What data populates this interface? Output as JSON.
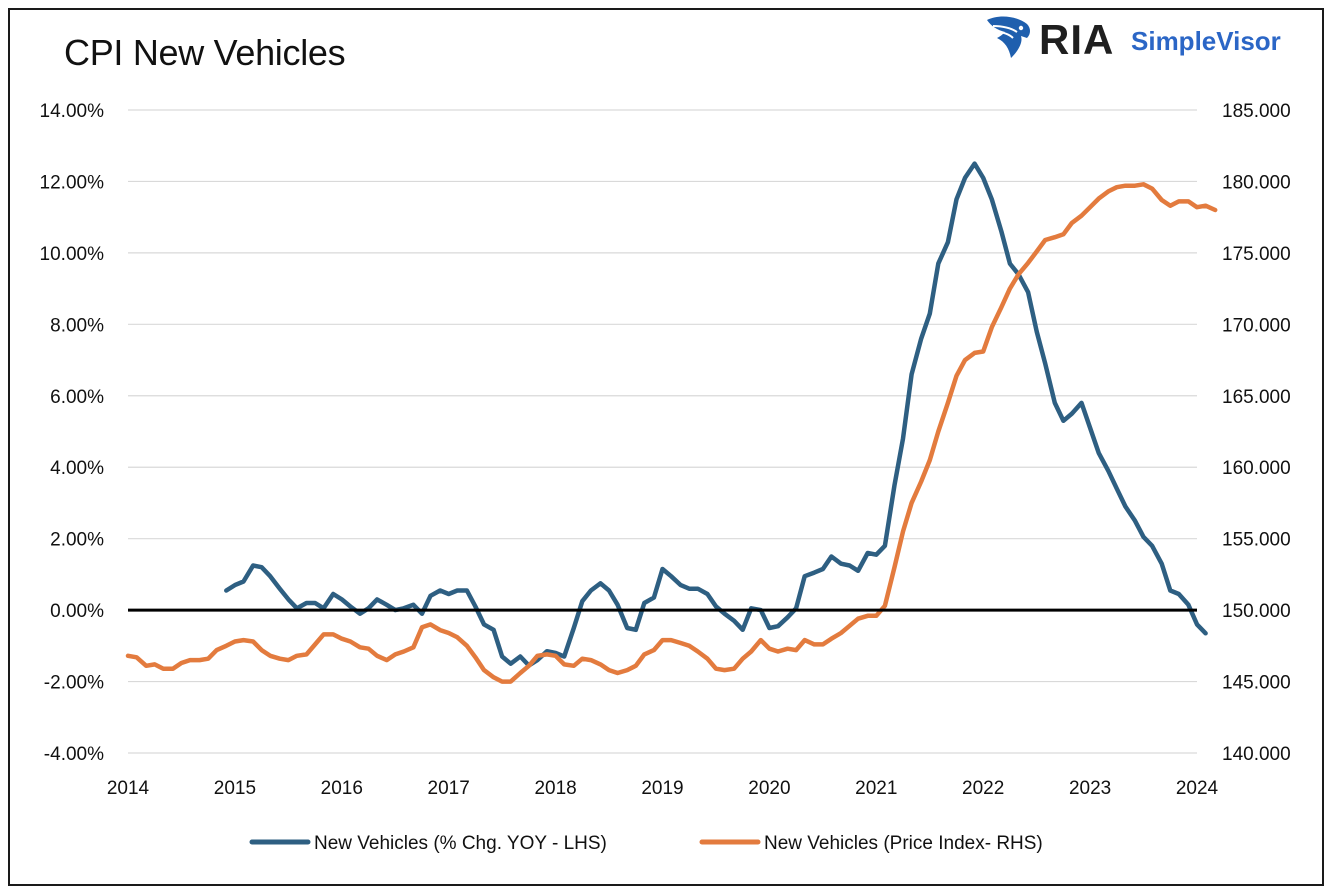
{
  "chart_data": {
    "type": "line",
    "title": "CPI New Vehicles",
    "logo": {
      "brand": "RIA",
      "product": "SimpleVisor",
      "icon": "eagle-head-icon"
    },
    "x_ticks": [
      "2014",
      "2015",
      "2016",
      "2017",
      "2018",
      "2019",
      "2020",
      "2021",
      "2022",
      "2023",
      "2024"
    ],
    "xlim": [
      2014,
      2024
    ],
    "y_left": {
      "ylim": [
        -4,
        14
      ],
      "ticks": [
        14,
        12,
        10,
        8,
        6,
        4,
        2,
        0,
        -2,
        -4
      ],
      "tick_labels": [
        "14.00%",
        "12.00%",
        "10.00%",
        "8.00%",
        "6.00%",
        "4.00%",
        "2.00%",
        "0.00%",
        "-2.00%",
        "-4.00%"
      ]
    },
    "y_right": {
      "ylim": [
        140,
        185
      ],
      "ticks": [
        185,
        180,
        175,
        170,
        165,
        160,
        155,
        150,
        145,
        140
      ],
      "tick_labels": [
        "185.000",
        "180.000",
        "175.000",
        "170.000",
        "165.000",
        "160.000",
        "155.000",
        "150.000",
        "145.000",
        "140.000"
      ]
    },
    "grid": true,
    "zero_line": true,
    "legend_position": "bottom",
    "series": [
      {
        "name": "New Vehicles (% Chg. YOY - LHS)",
        "axis": "left",
        "color": "#2e5f82",
        "points": [
          [
            2014.92,
            0.55
          ],
          [
            2015.0,
            0.7
          ],
          [
            2015.08,
            0.8
          ],
          [
            2015.17,
            1.25
          ],
          [
            2015.25,
            1.2
          ],
          [
            2015.33,
            0.95
          ],
          [
            2015.42,
            0.6
          ],
          [
            2015.5,
            0.3
          ],
          [
            2015.58,
            0.05
          ],
          [
            2015.67,
            0.2
          ],
          [
            2015.75,
            0.2
          ],
          [
            2015.83,
            0.05
          ],
          [
            2015.92,
            0.45
          ],
          [
            2016.0,
            0.3
          ],
          [
            2016.08,
            0.1
          ],
          [
            2016.17,
            -0.1
          ],
          [
            2016.25,
            0.05
          ],
          [
            2016.33,
            0.3
          ],
          [
            2016.42,
            0.15
          ],
          [
            2016.5,
            0.0
          ],
          [
            2016.58,
            0.05
          ],
          [
            2016.67,
            0.15
          ],
          [
            2016.75,
            -0.1
          ],
          [
            2016.83,
            0.4
          ],
          [
            2016.92,
            0.55
          ],
          [
            2017.0,
            0.45
          ],
          [
            2017.08,
            0.55
          ],
          [
            2017.17,
            0.55
          ],
          [
            2017.25,
            0.1
          ],
          [
            2017.33,
            -0.4
          ],
          [
            2017.42,
            -0.55
          ],
          [
            2017.5,
            -1.3
          ],
          [
            2017.58,
            -1.5
          ],
          [
            2017.67,
            -1.3
          ],
          [
            2017.75,
            -1.55
          ],
          [
            2017.83,
            -1.4
          ],
          [
            2017.92,
            -1.15
          ],
          [
            2018.0,
            -1.2
          ],
          [
            2018.08,
            -1.3
          ],
          [
            2018.17,
            -0.5
          ],
          [
            2018.25,
            0.25
          ],
          [
            2018.33,
            0.55
          ],
          [
            2018.42,
            0.75
          ],
          [
            2018.5,
            0.55
          ],
          [
            2018.58,
            0.15
          ],
          [
            2018.67,
            -0.5
          ],
          [
            2018.75,
            -0.55
          ],
          [
            2018.83,
            0.2
          ],
          [
            2018.92,
            0.35
          ],
          [
            2019.0,
            1.15
          ],
          [
            2019.08,
            0.95
          ],
          [
            2019.17,
            0.7
          ],
          [
            2019.25,
            0.6
          ],
          [
            2019.33,
            0.6
          ],
          [
            2019.42,
            0.45
          ],
          [
            2019.5,
            0.1
          ],
          [
            2019.58,
            -0.1
          ],
          [
            2019.67,
            -0.3
          ],
          [
            2019.75,
            -0.55
          ],
          [
            2019.83,
            0.05
          ],
          [
            2019.92,
            0.0
          ],
          [
            2020.0,
            -0.5
          ],
          [
            2020.08,
            -0.45
          ],
          [
            2020.17,
            -0.2
          ],
          [
            2020.25,
            0.05
          ],
          [
            2020.33,
            0.95
          ],
          [
            2020.42,
            1.05
          ],
          [
            2020.5,
            1.15
          ],
          [
            2020.58,
            1.5
          ],
          [
            2020.67,
            1.3
          ],
          [
            2020.75,
            1.25
          ],
          [
            2020.83,
            1.1
          ],
          [
            2020.92,
            1.6
          ],
          [
            2021.0,
            1.55
          ],
          [
            2021.08,
            1.8
          ],
          [
            2021.17,
            3.5
          ],
          [
            2021.25,
            4.8
          ],
          [
            2021.33,
            6.6
          ],
          [
            2021.42,
            7.6
          ],
          [
            2021.5,
            8.3
          ],
          [
            2021.58,
            9.7
          ],
          [
            2021.67,
            10.3
          ],
          [
            2021.75,
            11.5
          ],
          [
            2021.83,
            12.1
          ],
          [
            2021.92,
            12.5
          ],
          [
            2022.0,
            12.1
          ],
          [
            2022.08,
            11.5
          ],
          [
            2022.17,
            10.6
          ],
          [
            2022.25,
            9.7
          ],
          [
            2022.33,
            9.4
          ],
          [
            2022.42,
            8.9
          ],
          [
            2022.5,
            7.8
          ],
          [
            2022.58,
            6.9
          ],
          [
            2022.67,
            5.8
          ],
          [
            2022.75,
            5.3
          ],
          [
            2022.83,
            5.5
          ],
          [
            2022.92,
            5.8
          ],
          [
            2023.0,
            5.1
          ],
          [
            2023.08,
            4.4
          ],
          [
            2023.17,
            3.9
          ],
          [
            2023.25,
            3.4
          ],
          [
            2023.33,
            2.9
          ],
          [
            2023.42,
            2.5
          ],
          [
            2023.5,
            2.05
          ],
          [
            2023.58,
            1.8
          ],
          [
            2023.67,
            1.3
          ],
          [
            2023.75,
            0.55
          ],
          [
            2023.83,
            0.45
          ],
          [
            2023.92,
            0.15
          ],
          [
            2024.0,
            -0.4
          ],
          [
            2024.08,
            -0.65
          ]
        ]
      },
      {
        "name": "New Vehicles (Price Index- RHS)",
        "axis": "right",
        "color": "#e37b3e",
        "points": [
          [
            2014.0,
            146.8
          ],
          [
            2014.08,
            146.7
          ],
          [
            2014.17,
            146.1
          ],
          [
            2014.25,
            146.2
          ],
          [
            2014.33,
            145.9
          ],
          [
            2014.42,
            145.9
          ],
          [
            2014.5,
            146.3
          ],
          [
            2014.58,
            146.5
          ],
          [
            2014.67,
            146.5
          ],
          [
            2014.75,
            146.6
          ],
          [
            2014.83,
            147.2
          ],
          [
            2014.92,
            147.5
          ],
          [
            2015.0,
            147.8
          ],
          [
            2015.08,
            147.9
          ],
          [
            2015.17,
            147.8
          ],
          [
            2015.25,
            147.2
          ],
          [
            2015.33,
            146.8
          ],
          [
            2015.42,
            146.6
          ],
          [
            2015.5,
            146.5
          ],
          [
            2015.58,
            146.8
          ],
          [
            2015.67,
            146.9
          ],
          [
            2015.75,
            147.6
          ],
          [
            2015.83,
            148.3
          ],
          [
            2015.92,
            148.3
          ],
          [
            2016.0,
            148.0
          ],
          [
            2016.08,
            147.8
          ],
          [
            2016.17,
            147.4
          ],
          [
            2016.25,
            147.3
          ],
          [
            2016.33,
            146.8
          ],
          [
            2016.42,
            146.5
          ],
          [
            2016.5,
            146.9
          ],
          [
            2016.58,
            147.1
          ],
          [
            2016.67,
            147.4
          ],
          [
            2016.75,
            148.8
          ],
          [
            2016.83,
            149.0
          ],
          [
            2016.92,
            148.6
          ],
          [
            2017.0,
            148.4
          ],
          [
            2017.08,
            148.1
          ],
          [
            2017.17,
            147.5
          ],
          [
            2017.25,
            146.7
          ],
          [
            2017.33,
            145.8
          ],
          [
            2017.42,
            145.3
          ],
          [
            2017.5,
            145.0
          ],
          [
            2017.58,
            145.0
          ],
          [
            2017.67,
            145.6
          ],
          [
            2017.75,
            146.1
          ],
          [
            2017.83,
            146.8
          ],
          [
            2017.92,
            146.9
          ],
          [
            2018.0,
            146.8
          ],
          [
            2018.08,
            146.2
          ],
          [
            2018.17,
            146.1
          ],
          [
            2018.25,
            146.6
          ],
          [
            2018.33,
            146.5
          ],
          [
            2018.42,
            146.2
          ],
          [
            2018.5,
            145.8
          ],
          [
            2018.58,
            145.6
          ],
          [
            2018.67,
            145.8
          ],
          [
            2018.75,
            146.1
          ],
          [
            2018.83,
            146.9
          ],
          [
            2018.92,
            147.2
          ],
          [
            2019.0,
            147.9
          ],
          [
            2019.08,
            147.9
          ],
          [
            2019.17,
            147.7
          ],
          [
            2019.25,
            147.5
          ],
          [
            2019.33,
            147.1
          ],
          [
            2019.42,
            146.6
          ],
          [
            2019.5,
            145.9
          ],
          [
            2019.58,
            145.8
          ],
          [
            2019.67,
            145.9
          ],
          [
            2019.75,
            146.6
          ],
          [
            2019.83,
            147.1
          ],
          [
            2019.92,
            147.9
          ],
          [
            2020.0,
            147.3
          ],
          [
            2020.08,
            147.1
          ],
          [
            2020.17,
            147.3
          ],
          [
            2020.25,
            147.2
          ],
          [
            2020.33,
            147.9
          ],
          [
            2020.42,
            147.6
          ],
          [
            2020.5,
            147.6
          ],
          [
            2020.58,
            148.0
          ],
          [
            2020.67,
            148.4
          ],
          [
            2020.75,
            148.9
          ],
          [
            2020.83,
            149.4
          ],
          [
            2020.92,
            149.6
          ],
          [
            2021.0,
            149.6
          ],
          [
            2021.08,
            150.3
          ],
          [
            2021.17,
            153.0
          ],
          [
            2021.25,
            155.5
          ],
          [
            2021.33,
            157.5
          ],
          [
            2021.42,
            159.0
          ],
          [
            2021.5,
            160.5
          ],
          [
            2021.58,
            162.5
          ],
          [
            2021.67,
            164.5
          ],
          [
            2021.75,
            166.4
          ],
          [
            2021.83,
            167.5
          ],
          [
            2021.92,
            168.0
          ],
          [
            2022.0,
            168.1
          ],
          [
            2022.08,
            169.8
          ],
          [
            2022.17,
            171.2
          ],
          [
            2022.25,
            172.5
          ],
          [
            2022.33,
            173.5
          ],
          [
            2022.42,
            174.3
          ],
          [
            2022.5,
            175.1
          ],
          [
            2022.58,
            175.9
          ],
          [
            2022.67,
            176.1
          ],
          [
            2022.75,
            176.3
          ],
          [
            2022.83,
            177.1
          ],
          [
            2022.92,
            177.6
          ],
          [
            2023.0,
            178.2
          ],
          [
            2023.08,
            178.8
          ],
          [
            2023.17,
            179.3
          ],
          [
            2023.25,
            179.6
          ],
          [
            2023.33,
            179.7
          ],
          [
            2023.42,
            179.7
          ],
          [
            2023.5,
            179.8
          ],
          [
            2023.58,
            179.5
          ],
          [
            2023.67,
            178.7
          ],
          [
            2023.75,
            178.3
          ],
          [
            2023.83,
            178.6
          ],
          [
            2023.92,
            178.6
          ],
          [
            2024.0,
            178.2
          ],
          [
            2024.08,
            178.3
          ],
          [
            2024.17,
            178.0
          ]
        ]
      }
    ]
  }
}
